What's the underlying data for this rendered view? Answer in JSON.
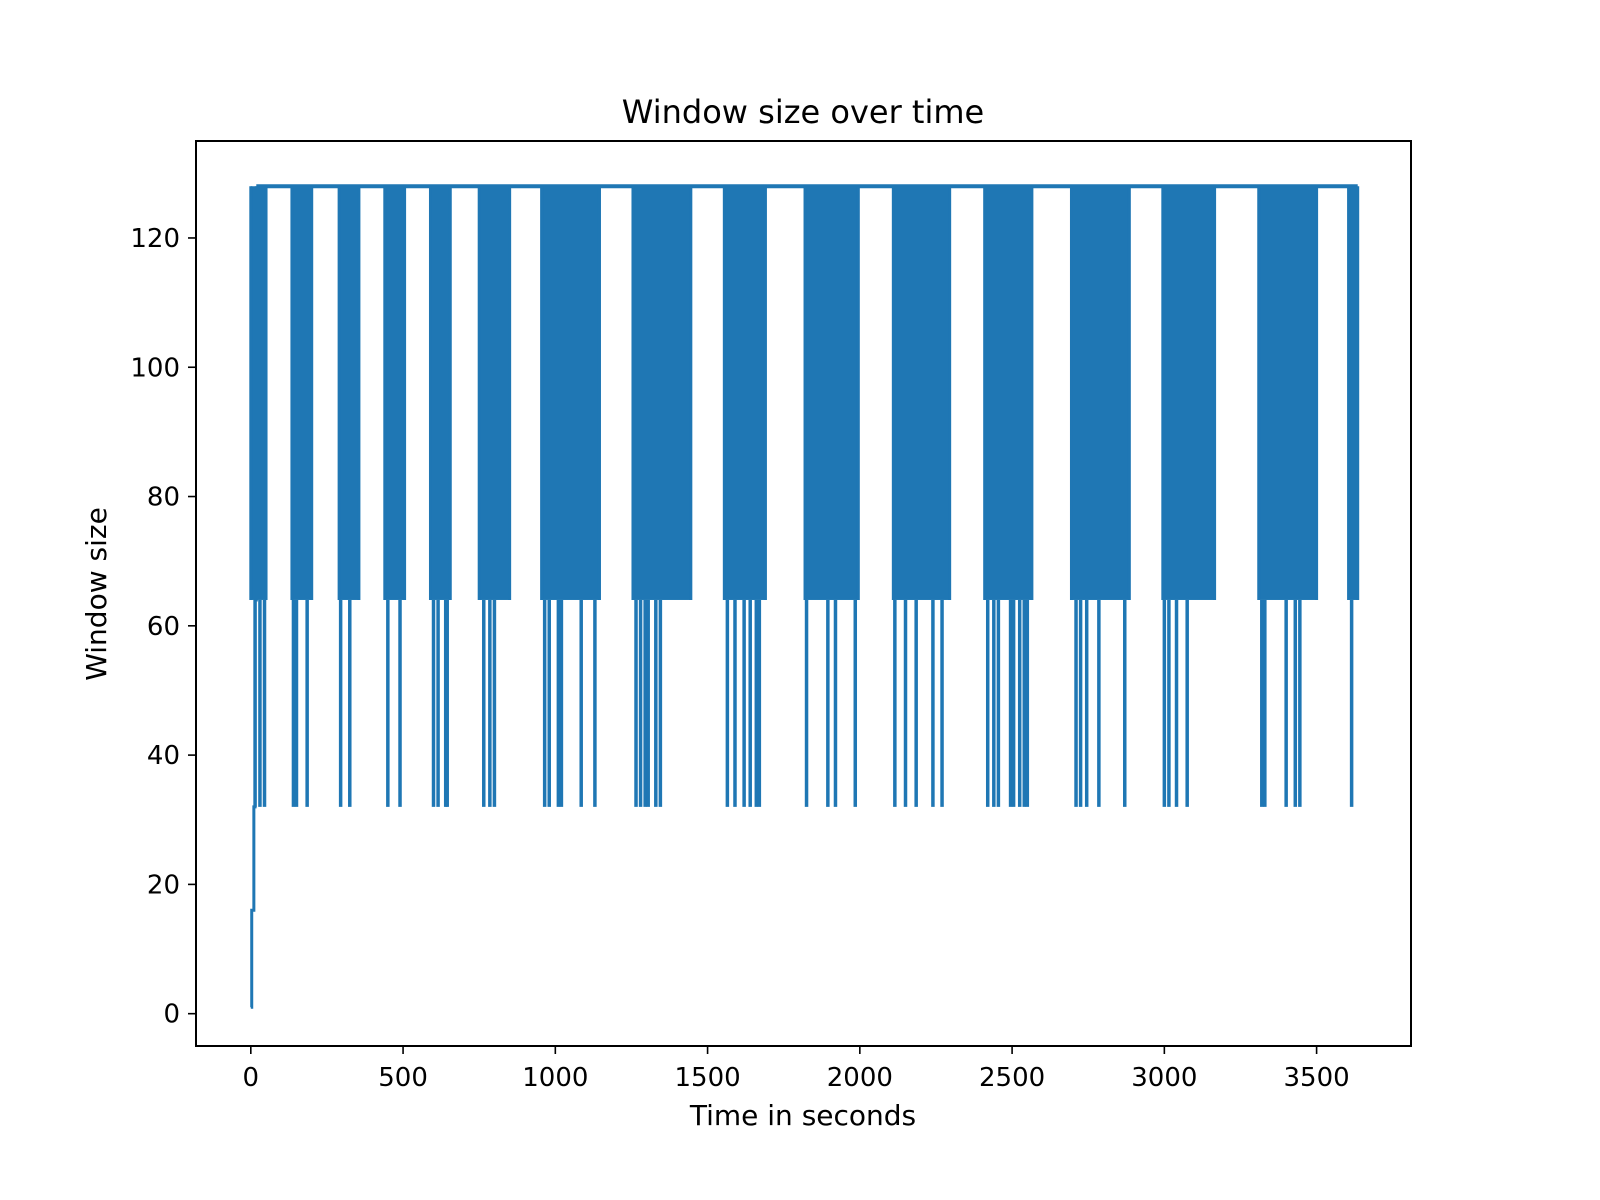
{
  "chart_data": {
    "type": "line",
    "title": "Window size over time",
    "xlabel": "Time in seconds",
    "ylabel": "Window size",
    "xlim": [
      -180,
      3810
    ],
    "ylim": [
      -5,
      135
    ],
    "xticks": [
      0,
      500,
      1000,
      1500,
      2000,
      2500,
      3000,
      3500
    ],
    "yticks": [
      0,
      20,
      40,
      60,
      80,
      100,
      120
    ],
    "grid": false,
    "legend": "none",
    "series": [
      {
        "color": "#1f77b4",
        "baseline_max": 128,
        "ramp_up": [
          [
            0,
            1
          ],
          [
            3,
            16
          ],
          [
            10,
            32
          ],
          [
            14,
            64
          ],
          [
            18,
            128
          ]
        ],
        "dense_bands": [
          {
            "x": [
              0,
              50
            ],
            "min": 64,
            "dips_to_32": [
              14,
              30,
              45
            ]
          },
          {
            "x": [
              135,
              200
            ],
            "min": 64,
            "dips_to_32": [
              140,
              150,
              185
            ]
          },
          {
            "x": [
              290,
              355
            ],
            "min": 64,
            "dips_to_32": [
              295,
              325
            ]
          },
          {
            "x": [
              440,
              505
            ],
            "min": 64,
            "dips_to_32": [
              450,
              490
            ]
          },
          {
            "x": [
              590,
              655
            ],
            "min": 64,
            "dips_to_32": [
              600,
              615,
              640,
              645
            ]
          },
          {
            "x": [
              750,
              850
            ],
            "min": 64,
            "dips_to_32": [
              765,
              785,
              800
            ]
          },
          {
            "x": [
              955,
              1145
            ],
            "min": 64,
            "dips_to_32": [
              965,
              980,
              1010,
              1020,
              1085,
              1130
            ]
          },
          {
            "x": [
              1255,
              1445
            ],
            "min": 64,
            "dips_to_32": [
              1265,
              1280,
              1295,
              1305,
              1330,
              1345
            ]
          },
          {
            "x": [
              1555,
              1690
            ],
            "min": 64,
            "dips_to_32": [
              1565,
              1590,
              1620,
              1640,
              1660,
              1670
            ]
          },
          {
            "x": [
              1820,
              1995
            ],
            "min": 64,
            "dips_to_32": [
              1825,
              1895,
              1920,
              1985
            ]
          },
          {
            "x": [
              2110,
              2295
            ],
            "min": 64,
            "dips_to_32": [
              2115,
              2150,
              2185,
              2240,
              2270
            ]
          },
          {
            "x": [
              2410,
              2565
            ],
            "min": 64,
            "dips_to_32": [
              2420,
              2440,
              2455,
              2495,
              2505,
              2525,
              2540,
              2550
            ]
          },
          {
            "x": [
              2695,
              2885
            ],
            "min": 64,
            "dips_to_32": [
              2710,
              2725,
              2745,
              2785,
              2870
            ]
          },
          {
            "x": [
              2995,
              3165
            ],
            "min": 64,
            "dips_to_32": [
              3000,
              3015,
              3040,
              3075
            ]
          },
          {
            "x": [
              3310,
              3500
            ],
            "min": 64,
            "dips_to_32": [
              3320,
              3330,
              3400,
              3430,
              3445
            ]
          },
          {
            "x": [
              3605,
              3635
            ],
            "min": 64,
            "dips_to_32": [
              3615
            ]
          }
        ]
      }
    ]
  }
}
